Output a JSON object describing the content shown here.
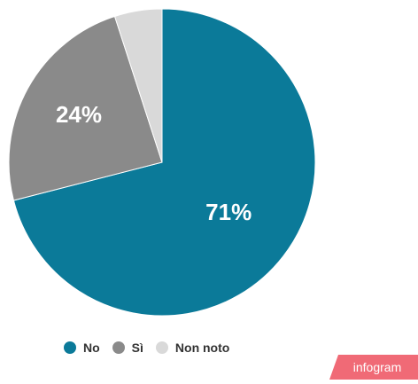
{
  "chart_data": {
    "type": "pie",
    "slices": [
      {
        "label": "No",
        "value": 71,
        "display": "71%",
        "color": "#0b7a99"
      },
      {
        "label": "Sì",
        "value": 24,
        "display": "24%",
        "color": "#8a8a8a"
      },
      {
        "label": "Non noto",
        "value": 5,
        "display": "",
        "color": "#d9d9d9"
      }
    ],
    "legend_position": "bottom-left"
  },
  "branding": {
    "badge_text": "infogram",
    "badge_color": "#f06a76"
  }
}
